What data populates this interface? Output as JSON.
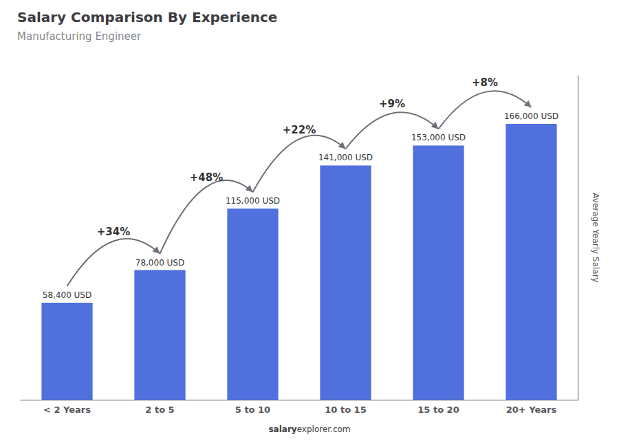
{
  "chart_data": {
    "type": "bar",
    "title": "Salary Comparison By Experience",
    "subtitle": "Manufacturing Engineer",
    "categories": [
      "< 2 Years",
      "2 to 5",
      "5 to 10",
      "10 to 15",
      "15 to 20",
      "20+ Years"
    ],
    "values": [
      58400,
      78000,
      115000,
      141000,
      153000,
      166000
    ],
    "value_labels": [
      "58,400 USD",
      "78,000 USD",
      "115,000 USD",
      "141,000 USD",
      "153,000 USD",
      "166,000 USD"
    ],
    "data_labels": true,
    "annotations": [
      "+34%",
      "+48%",
      "+22%",
      "+9%",
      "+8%"
    ],
    "ylabel": "Average Yearly Salary",
    "ylim": [
      0,
      195000
    ],
    "grid": false,
    "tick_labels": "x",
    "watermark": [
      "salary",
      "explorer.com"
    ]
  }
}
